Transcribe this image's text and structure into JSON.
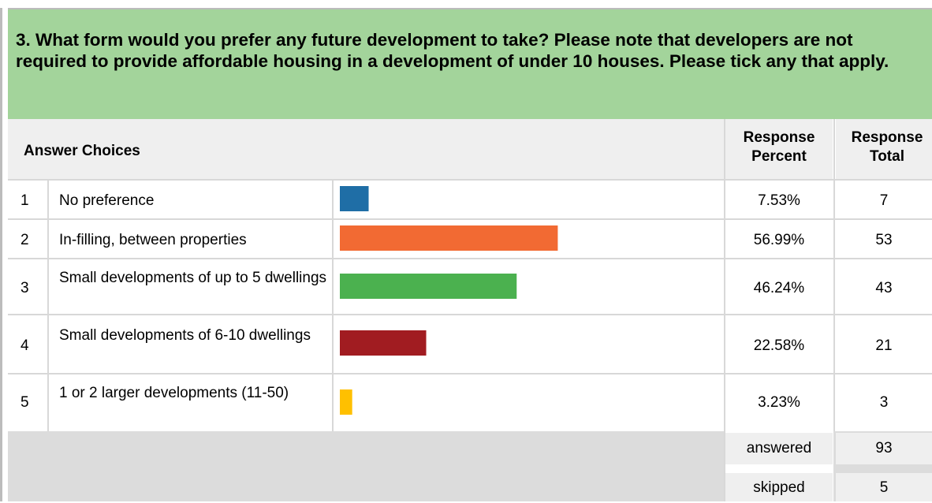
{
  "question": "3. What form would you prefer any future development to take? Please note that developers are not required to provide affordable housing in a development of under 10 houses. Please tick any that apply.",
  "headers": {
    "answer_choices": "Answer Choices",
    "response_percent": [
      "Response",
      "Percent"
    ],
    "response_total": [
      "Response",
      "Total"
    ]
  },
  "rows": [
    {
      "num": "1",
      "label": "No preference",
      "percent": "7.53%",
      "total": "7",
      "color": "#1f6ea6"
    },
    {
      "num": "2",
      "label": "In-filling, between properties",
      "percent": "56.99%",
      "total": "53",
      "color": "#f26a33"
    },
    {
      "num": "3",
      "label": "Small developments of up to 5 dwellings",
      "percent": "46.24%",
      "total": "43",
      "color": "#4bb14f"
    },
    {
      "num": "4",
      "label": "Small developments of 6-10 dwellings",
      "percent": "22.58%",
      "total": "21",
      "color": "#a11c21"
    },
    {
      "num": "5",
      "label": "1 or 2 larger developments (11-50)",
      "percent": "3.23%",
      "total": "3",
      "color": "#ffc000"
    }
  ],
  "footer": {
    "answered_label": "answered",
    "answered_value": "93",
    "skipped_label": "skipped",
    "skipped_value": "5"
  },
  "chart_data": {
    "type": "bar",
    "categories": [
      "No preference",
      "In-filling, between properties",
      "Small developments of up to 5 dwellings",
      "Small developments of 6-10 dwellings",
      "1 or 2 larger developments (11-50)"
    ],
    "values": [
      7.53,
      56.99,
      46.24,
      22.58,
      3.23
    ],
    "counts": [
      7,
      53,
      43,
      21,
      3
    ]
  }
}
